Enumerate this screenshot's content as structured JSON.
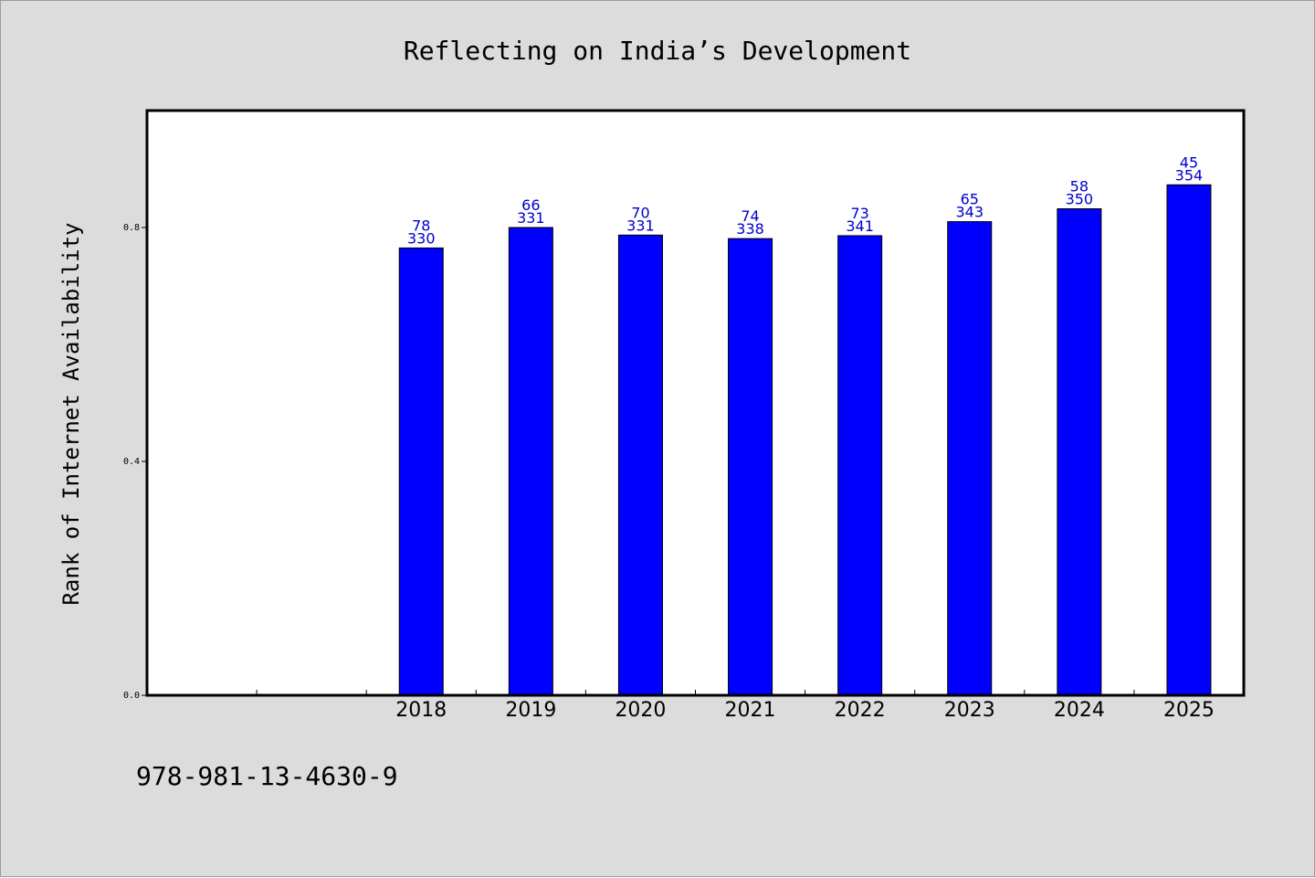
{
  "footer": {
    "code": "978-981-13-4630-9"
  },
  "colors": {
    "background": "#dcdcdc",
    "plot_background": "#ffffff",
    "bar": "#0000ff",
    "label": "#0000cc"
  },
  "chart_data": {
    "type": "bar",
    "title": "Reflecting on India’s Development",
    "ylabel": "Rank of Internet Availability",
    "xlabel": "",
    "categories": [
      "2018",
      "2019",
      "2020",
      "2021",
      "2022",
      "2023",
      "2024",
      "2025"
    ],
    "values": [
      0.765,
      0.8,
      0.787,
      0.781,
      0.786,
      0.81,
      0.832,
      0.873
    ],
    "label_top": [
      "78",
      "66",
      "70",
      "74",
      "73",
      "65",
      "58",
      "45"
    ],
    "label_bottom": [
      "330",
      "331",
      "331",
      "338",
      "341",
      "343",
      "350",
      "354"
    ],
    "ylim": [
      0.0,
      1.0
    ],
    "yticks": [
      0.0,
      0.4,
      0.8
    ],
    "ytick_labels": [
      "0.0",
      "0.4",
      "0.8"
    ],
    "x_slots": 10,
    "first_bar_slot": 2,
    "grid": false,
    "legend": "none"
  }
}
